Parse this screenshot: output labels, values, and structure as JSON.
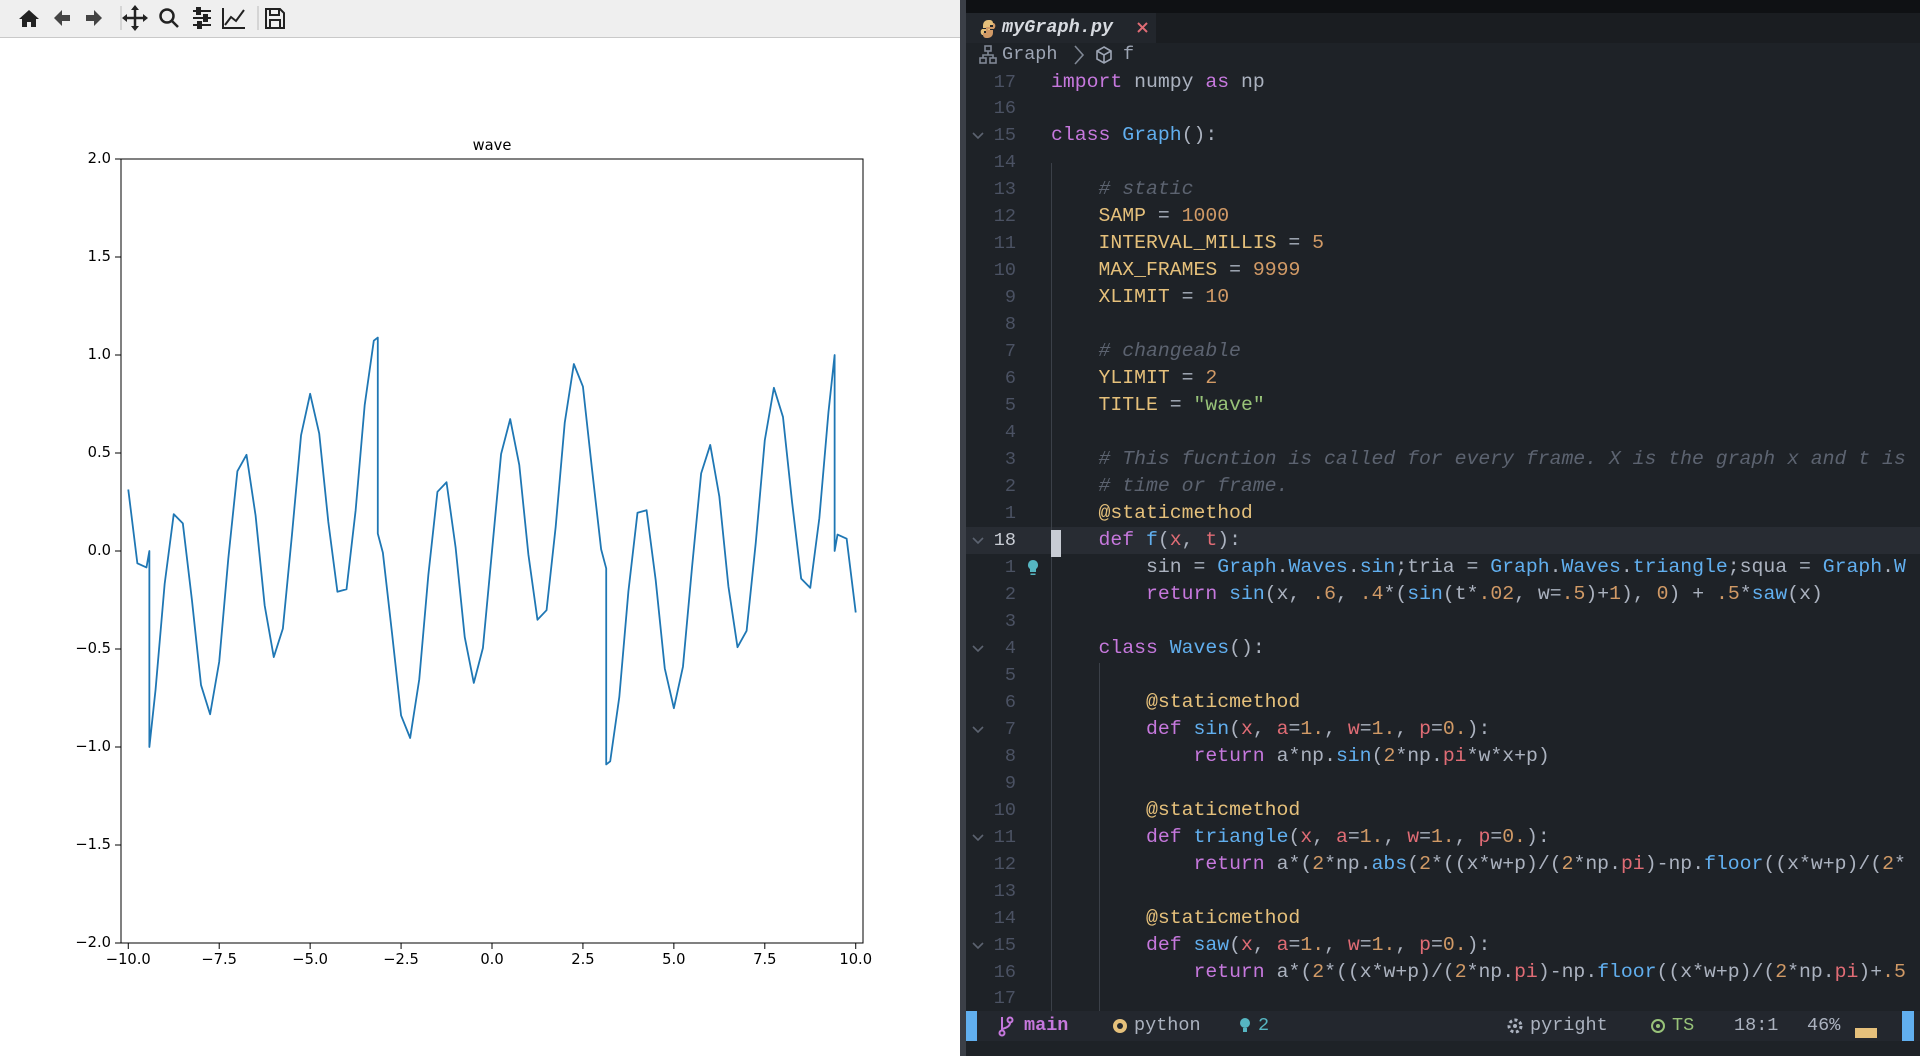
{
  "chart_data": {
    "type": "line",
    "title": "wave",
    "color": "#1f77b4",
    "x": [
      -10,
      -9.75,
      -9.5,
      -9.42,
      -9.42,
      -9.25,
      -9,
      -8.75,
      -8.5,
      -8.25,
      -8,
      -7.75,
      -7.5,
      -7.25,
      -7,
      -6.75,
      -6.5,
      -6.25,
      -6,
      -5.75,
      -5.5,
      -5.25,
      -5,
      -4.75,
      -4.5,
      -4.25,
      -4,
      -3.75,
      -3.5,
      -3.25,
      -3.14,
      -3.14,
      -3,
      -2.75,
      -2.5,
      -2.25,
      -2,
      -1.75,
      -1.5,
      -1.25,
      -1,
      -0.75,
      -0.5,
      -0.25,
      0,
      0.25,
      0.5,
      0.75,
      1,
      1.25,
      1.5,
      1.75,
      2,
      2.25,
      2.5,
      2.75,
      3,
      3.14,
      3.14,
      3.25,
      3.5,
      3.75,
      4,
      4.25,
      4.5,
      4.75,
      5,
      5.25,
      5.5,
      5.75,
      6,
      6.25,
      6.5,
      6.75,
      7,
      7.25,
      7.5,
      7.75,
      8,
      8.25,
      8.5,
      8.75,
      9,
      9.25,
      9.42,
      9.42,
      9.5,
      9.75,
      10
    ],
    "values": [
      0.314,
      -0.063,
      -0.084,
      0,
      -1,
      -0.708,
      -0.168,
      0.188,
      0.141,
      -0.25,
      -0.684,
      -0.833,
      -0.565,
      -0.039,
      0.407,
      0.491,
      0.181,
      -0.278,
      -0.541,
      -0.396,
      0.082,
      0.59,
      0.802,
      0.599,
      0.148,
      -0.208,
      -0.195,
      0.206,
      0.745,
      1.073,
      1.089,
      0.089,
      -0.009,
      -0.417,
      -0.839,
      -0.954,
      -0.655,
      -0.122,
      0.302,
      0.351,
      0.017,
      -0.439,
      -0.673,
      -0.495,
      0,
      0.495,
      0.673,
      0.439,
      -0.017,
      -0.351,
      -0.302,
      0.122,
      0.655,
      0.954,
      0.839,
      0.417,
      0.009,
      -0.089,
      -1.089,
      -1.073,
      -0.745,
      -0.206,
      0.195,
      0.208,
      -0.148,
      -0.599,
      -0.802,
      -0.59,
      -0.082,
      0.396,
      0.541,
      0.278,
      -0.181,
      -0.491,
      -0.407,
      0.039,
      0.565,
      0.833,
      0.684,
      0.25,
      -0.141,
      -0.188,
      0.168,
      0.708,
      1,
      0,
      0.084,
      0.063,
      -0.314
    ],
    "xlim": [
      -10.2,
      10.2
    ],
    "ylim": [
      -2,
      2
    ],
    "xticks": [
      {
        "value": -10,
        "label": "−10.0"
      },
      {
        "value": -7.5,
        "label": "−7.5"
      },
      {
        "value": -5,
        "label": "−5.0"
      },
      {
        "value": -2.5,
        "label": "−2.5"
      },
      {
        "value": 0,
        "label": "0.0"
      },
      {
        "value": 2.5,
        "label": "2.5"
      },
      {
        "value": 5,
        "label": "5.0"
      },
      {
        "value": 7.5,
        "label": "7.5"
      },
      {
        "value": 10,
        "label": "10.0"
      }
    ],
    "yticks": [
      {
        "value": -2,
        "label": "−2.0"
      },
      {
        "value": -1.5,
        "label": "−1.5"
      },
      {
        "value": -1,
        "label": "−1.0"
      },
      {
        "value": -0.5,
        "label": "−0.5"
      },
      {
        "value": 0,
        "label": "0.0"
      },
      {
        "value": 0.5,
        "label": "0.5"
      },
      {
        "value": 1,
        "label": "1.0"
      },
      {
        "value": 1.5,
        "label": "1.5"
      },
      {
        "value": 2,
        "label": "2.0"
      }
    ]
  },
  "editor": {
    "tab": "myGraph.py",
    "breadcrumb": [
      "Graph",
      "f"
    ],
    "lines": [
      {
        "number": 17,
        "code": "import numpy as np"
      },
      {
        "number": 16
      },
      {
        "number": 15,
        "code": "class Graph():"
      },
      {
        "number": 14
      },
      {
        "number": 13,
        "code": "    # static"
      },
      {
        "number": 12,
        "code": "    SAMP = 1000"
      },
      {
        "number": 11,
        "code": "    INTERVAL_MILLIS = 5"
      },
      {
        "number": 10,
        "code": "    MAX_FRAMES = 9999"
      },
      {
        "number": 9,
        "code": "    XLIMIT = 10"
      },
      {
        "number": 8
      },
      {
        "number": 7,
        "code": "    # changeable"
      },
      {
        "number": 6,
        "code": "    YLIMIT = 2"
      },
      {
        "number": 5,
        "code": "    TITLE = \"wave\""
      },
      {
        "number": 4
      },
      {
        "number": 3,
        "code": "    # This fucntion is called for every frame. X is the graph x and t is"
      },
      {
        "number": 2,
        "code": "    # time or frame."
      },
      {
        "number": 1,
        "code": "    @staticmethod"
      },
      {
        "number": 18,
        "code": "    def f(x, t):"
      },
      {
        "number": 1,
        "code": "        sin = Graph.Waves.sin;tria = Graph.Waves.triangle;squa = Graph.W"
      },
      {
        "number": 2,
        "code": "        return sin(x, .6, .4*(sin(t*.02, w=.5)+1), 0) + .5*saw(x)"
      },
      {
        "number": 3
      },
      {
        "number": 4,
        "code": "    class Waves():"
      },
      {
        "number": 5
      },
      {
        "number": 6,
        "code": "        @staticmethod"
      },
      {
        "number": 7,
        "code": "        def sin(x, a=1., w=1., p=0.):"
      },
      {
        "number": 8,
        "code": "            return a*np.sin(2*np.pi*w*x+p)"
      },
      {
        "number": 9
      },
      {
        "number": 10,
        "code": "        @staticmethod"
      },
      {
        "number": 11,
        "code": "        def triangle(x, a=1., w=1., p=0.):"
      },
      {
        "number": 12,
        "code": "            return a*(2*np.abs(2*((x*w+p)/(2*np.pi)-np.floor((x*w+p)/(2*"
      },
      {
        "number": 13
      },
      {
        "number": 14,
        "code": "        @staticmethod"
      },
      {
        "number": 15,
        "code": "        def saw(x, a=1., w=1., p=0.):"
      },
      {
        "number": 16,
        "code": "            return a*(2*((x*w+p)/(2*np.pi)-np.floor((x*w+p)/(2*np.pi)+.5"
      },
      {
        "number": 17
      }
    ],
    "status": {
      "branch": "main",
      "filetype": "python",
      "hints": 2,
      "lsp": "pyright",
      "treesitter": "TS",
      "position": "18:1",
      "progress": "46%"
    }
  }
}
